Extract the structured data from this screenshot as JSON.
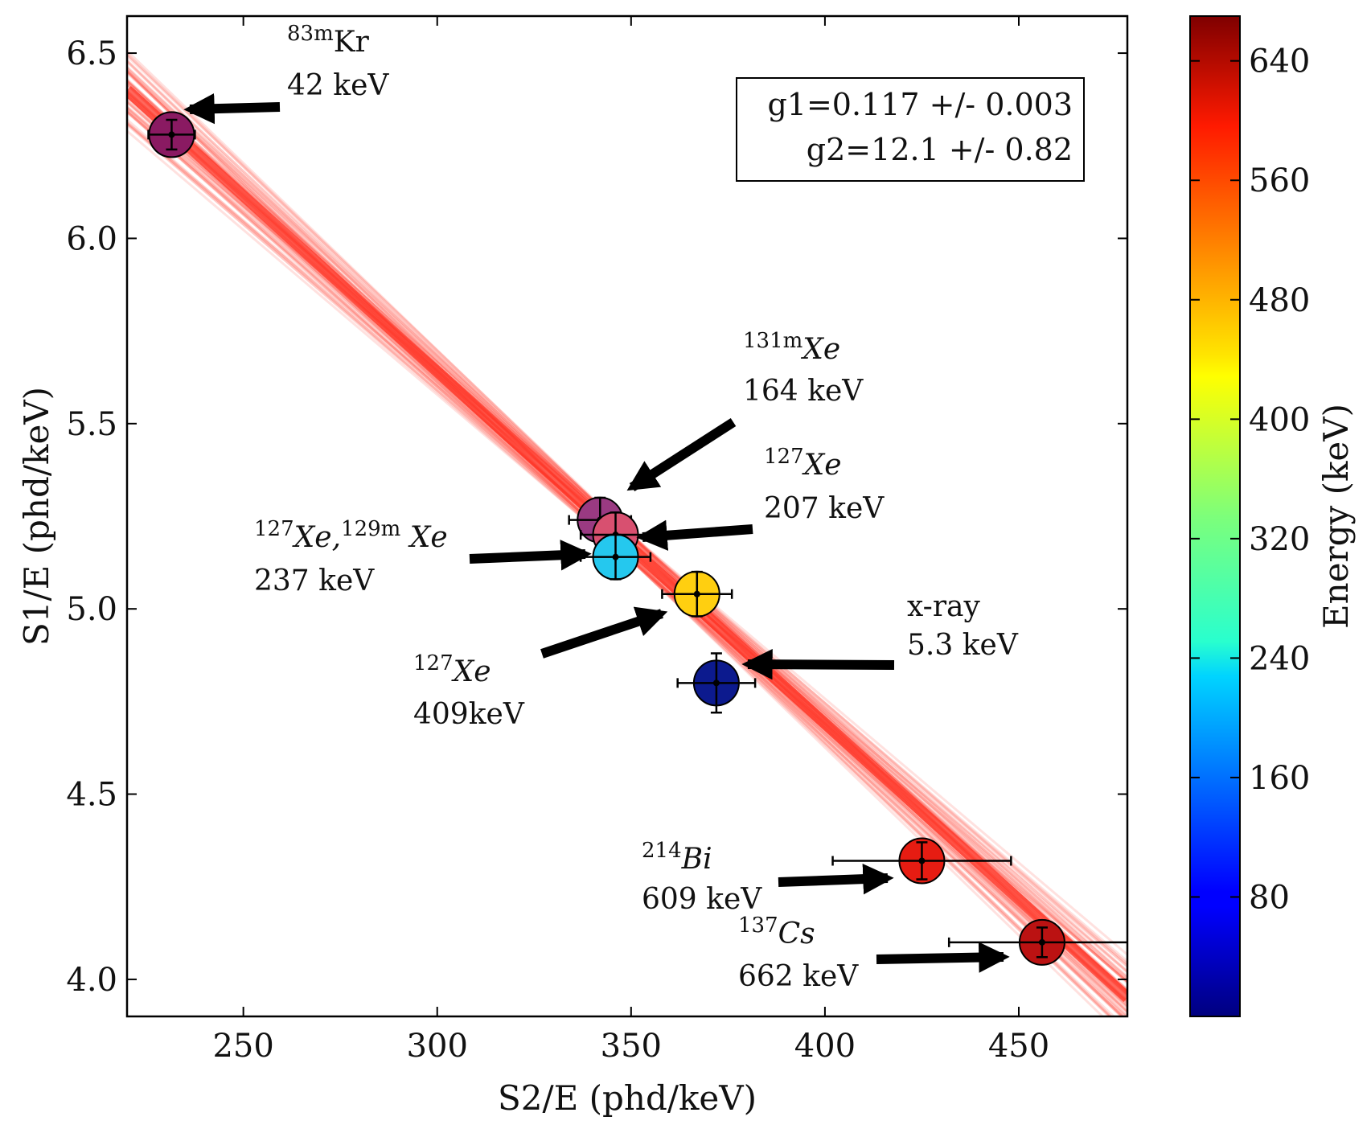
{
  "chart_data": {
    "type": "scatter",
    "xlabel": "S2/E (phd/keV)",
    "ylabel": "S1/E (phd/keV)",
    "xlim": [
      220,
      478
    ],
    "ylim": [
      3.9,
      6.6
    ],
    "x_ticks": [
      "250",
      "300",
      "350",
      "400",
      "450"
    ],
    "y_ticks": [
      "4.0",
      "4.5",
      "5.0",
      "5.5",
      "6.0",
      "6.5"
    ],
    "fit_box": {
      "g1": "g1=0.117 +/- 0.003",
      "g2": "g2=12.1 +/- 0.82"
    },
    "fit_line": {
      "x0": 220,
      "y0": 6.4,
      "x1": 478,
      "y1": 3.95,
      "band_color": "#ff2a1a"
    },
    "colorbar": {
      "label": "Energy (keV)",
      "range": [
        0,
        670
      ],
      "ticks": [
        "80",
        "160",
        "240",
        "320",
        "400",
        "480",
        "560",
        "640"
      ],
      "tick_values": [
        80,
        160,
        240,
        320,
        400,
        480,
        560,
        640
      ]
    },
    "points": [
      {
        "x": 231.5,
        "y": 6.28,
        "energy": 42,
        "xerr": 6,
        "yerr": 0.04,
        "color": "#8a1a62"
      },
      {
        "x": 342,
        "y": 5.24,
        "energy": 164,
        "xerr": 8,
        "yerr": 0.06,
        "color": "#9a3a82"
      },
      {
        "x": 346,
        "y": 5.2,
        "energy": 207,
        "xerr": 9,
        "yerr": 0.06,
        "color": "#d85070"
      },
      {
        "x": 346,
        "y": 5.14,
        "energy": 237,
        "xerr": 9,
        "yerr": 0.06,
        "color": "#25c8ee"
      },
      {
        "x": 367,
        "y": 5.04,
        "energy": 409,
        "xerr": 9,
        "yerr": 0.06,
        "color": "#ffcf10"
      },
      {
        "x": 372,
        "y": 4.8,
        "energy": 5.3,
        "xerr": 10,
        "yerr": 0.08,
        "color": "#0c1a8e"
      },
      {
        "x": 425,
        "y": 4.32,
        "energy": 609,
        "xerr": 23,
        "yerr": 0.05,
        "color": "#e61c12"
      },
      {
        "x": 456,
        "y": 4.1,
        "energy": 662,
        "xerr": 24,
        "yerr": 0.04,
        "color": "#bb1212"
      }
    ],
    "annotations": [
      {
        "sup": "83m",
        "name": "Kr",
        "energy": "42 keV"
      },
      {
        "sup": "131m",
        "name": "Xe",
        "energy": "164 keV"
      },
      {
        "sup": "127",
        "name": "Xe",
        "energy": "207 keV"
      },
      {
        "sup": "127",
        "name": "Xe,",
        "sup2": "129m",
        "name2": " Xe",
        "energy": "237 keV"
      },
      {
        "sup": "127",
        "name": "Xe",
        "energy": "409keV"
      },
      {
        "name": "x-ray",
        "energy": "5.3 keV"
      },
      {
        "sup": "214",
        "name": "Bi",
        "energy": "609 keV"
      },
      {
        "sup": "137",
        "name": "Cs",
        "energy": "662 keV"
      }
    ]
  }
}
